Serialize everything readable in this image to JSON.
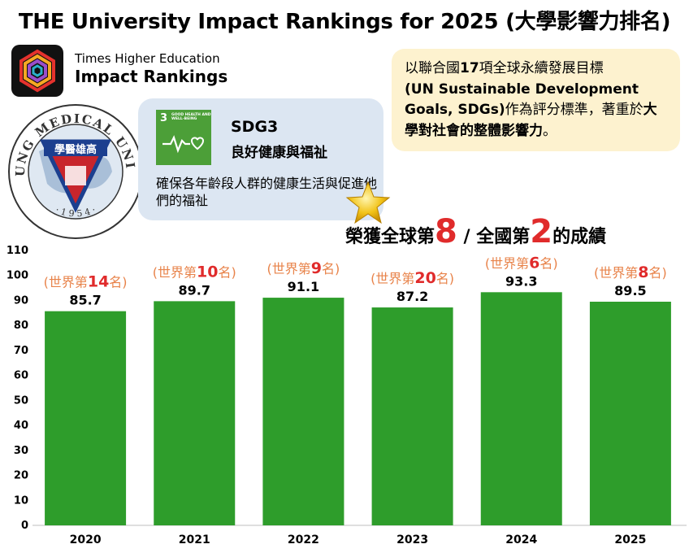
{
  "header": {
    "title": "THE University Impact Rankings for 2025 (大學影響力排名)"
  },
  "brand": {
    "line1": "Times Higher Education",
    "line2": "Impact Rankings"
  },
  "seal": {
    "text_top": "KAOHSIUNG MEDICAL UNIVERSITY",
    "text_bottom": "· 1 9 5 4 ·",
    "inner_text": "學醫雄高"
  },
  "sdg_card": {
    "tile_number": "3",
    "tile_caption": "GOOD HEALTH AND WELL-BEING",
    "code": "SDG3",
    "title": "良好健康與福祉",
    "description": "確保各年齡段人群的健康生活與促進他們的福祉"
  },
  "info_box": {
    "p1": "以聯合國",
    "p2": "17",
    "p3": "項全球永續發展目標",
    "p4": "(UN Sustainable Development Goals, SDGs)",
    "p5": "作為評分標準，著重於",
    "p6": "大學對社會的整體影響力",
    "p7": "。"
  },
  "headline": {
    "part1": "榮獲全球第",
    "world_rank": "8",
    "part2": " / 全國第",
    "national_rank": "2",
    "part3": "的成績"
  },
  "colors": {
    "bar": "#2e9d2b",
    "rank_label": "#e8834a",
    "rank_number": "#e02b2b",
    "sdg_green": "#4c9f38"
  },
  "chart_data": {
    "type": "bar",
    "categories": [
      "2020",
      "2021",
      "2022",
      "2023",
      "2024",
      "2025"
    ],
    "values": [
      85.7,
      89.7,
      91.1,
      87.2,
      93.3,
      89.5
    ],
    "rank_prefix": "(世界第",
    "rank_suffix": "名)",
    "world_ranks": [
      "14",
      "10",
      "9",
      "20",
      "6",
      "8"
    ],
    "y_ticks": [
      0,
      10,
      20,
      30,
      40,
      50,
      60,
      70,
      80,
      90,
      100,
      110
    ],
    "ylim": [
      0,
      110
    ],
    "grid": false,
    "legend": "none"
  }
}
